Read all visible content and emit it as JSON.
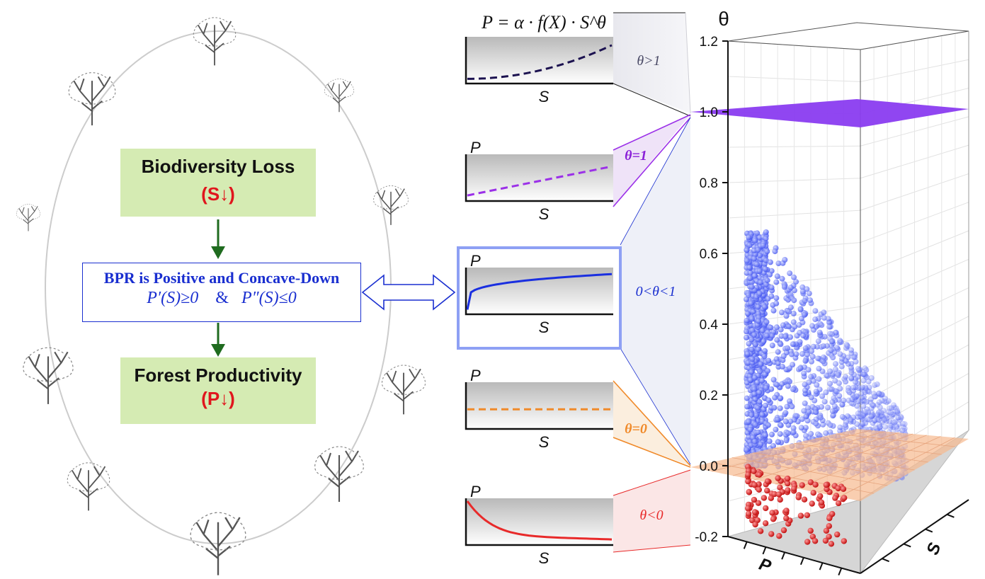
{
  "left_panel": {
    "box_loss": {
      "title": "Biodiversity Loss",
      "sub": "(S↓)"
    },
    "box_bpr": {
      "title": "BPR is Positive and Concave-Down",
      "cond_a": "P′(S)≥0",
      "amp": "&",
      "cond_b": "P″(S)≤0"
    },
    "box_prod": {
      "title": "Forest Productivity",
      "sub": "(P↓)"
    },
    "tree_icons": [
      "tree-sketch-icon"
    ]
  },
  "middle_panel": {
    "formula": "P = α · f(X) · S^θ",
    "mini_plots": [
      {
        "ylabel": "",
        "xlabel": "S",
        "label": "θ>1",
        "color": "#1c1250",
        "curve": "convex"
      },
      {
        "ylabel": "P",
        "xlabel": "S",
        "label": "θ=1",
        "color": "#9b30e8",
        "curve": "linear"
      },
      {
        "ylabel": "P",
        "xlabel": "S",
        "label": "0<θ<1",
        "color": "#1a2fe0",
        "curve": "concave"
      },
      {
        "ylabel": "P",
        "xlabel": "S",
        "label": "θ=0",
        "color": "#f08a2a",
        "curve": "flat"
      },
      {
        "ylabel": "P",
        "xlabel": "S",
        "label": "θ<0",
        "color": "#e82a2a",
        "curve": "decreasing"
      }
    ]
  },
  "chart_data": {
    "type": "scatter",
    "projection": "3d",
    "zlabel": "θ",
    "xlabel": "P",
    "ylabel": "S",
    "zticks": [
      "1.2",
      "1.0",
      "0.8",
      "0.6",
      "0.4",
      "0.2",
      "0.0",
      "-0.2"
    ],
    "zlim": [
      -0.2,
      1.2
    ],
    "planes": [
      {
        "z": 1.0,
        "color": "#8a3cf0"
      },
      {
        "z": 0.0,
        "color": "#f7b98e"
      }
    ],
    "series": [
      {
        "color": "#1a2fe0",
        "z_range": [
          0,
          0.66
        ]
      },
      {
        "color": "#e01a1a",
        "z_range": [
          -0.17,
          0
        ]
      }
    ],
    "grid": true
  }
}
